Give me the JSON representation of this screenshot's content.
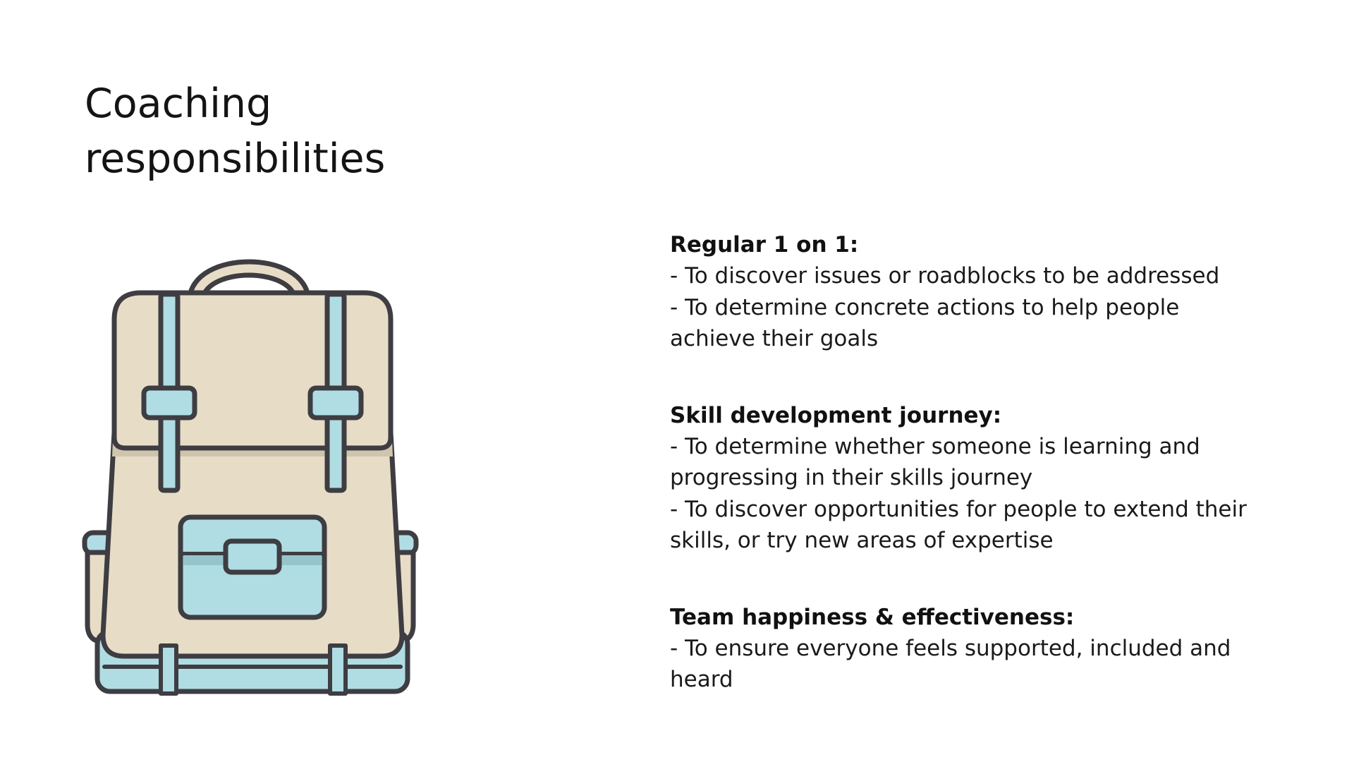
{
  "slide": {
    "title_lines": [
      "Coaching",
      "responsibilities"
    ],
    "illustration": {
      "icon": "backpack-icon",
      "colors": {
        "body": "#e7dcc6",
        "accent": "#b0dde3",
        "shadow": "#cfc4ad",
        "accent_shadow": "#96c4cb",
        "outline": "#3d3d42"
      }
    },
    "sections": [
      {
        "heading": "Regular 1 on 1:",
        "lines": [
          "- To discover issues or roadblocks to be addressed",
          "- To determine concrete actions to help people",
          "achieve their goals"
        ]
      },
      {
        "heading": "Skill development journey:",
        "lines": [
          "- To determine whether someone is learning and",
          "progressing in their skills journey",
          "- To discover opportunities for people to extend their",
          "skills, or try new areas of expertise"
        ]
      },
      {
        "heading": "Team happiness & effectiveness:",
        "lines": [
          "- To ensure everyone feels supported, included and",
          "heard"
        ]
      }
    ]
  }
}
